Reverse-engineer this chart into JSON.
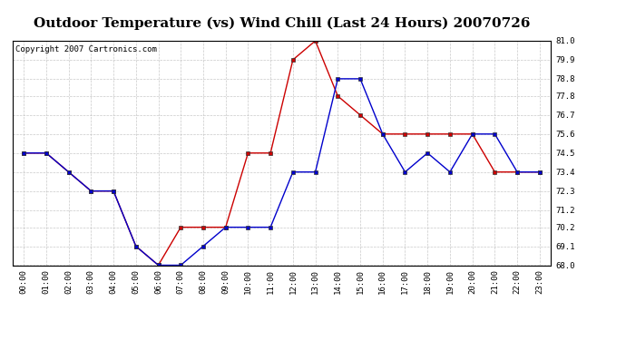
{
  "title": "Outdoor Temperature (vs) Wind Chill (Last 24 Hours) 20070726",
  "copyright": "Copyright 2007 Cartronics.com",
  "hours": [
    "00:00",
    "01:00",
    "02:00",
    "03:00",
    "04:00",
    "05:00",
    "06:00",
    "07:00",
    "08:00",
    "09:00",
    "10:00",
    "11:00",
    "12:00",
    "13:00",
    "14:00",
    "15:00",
    "16:00",
    "17:00",
    "18:00",
    "19:00",
    "20:00",
    "21:00",
    "22:00",
    "23:00"
  ],
  "outdoor_temp": [
    74.5,
    74.5,
    73.4,
    72.3,
    72.3,
    69.1,
    68.0,
    70.2,
    70.2,
    70.2,
    74.5,
    74.5,
    79.9,
    81.0,
    77.8,
    76.7,
    75.6,
    75.6,
    75.6,
    75.6,
    75.6,
    73.4,
    73.4,
    73.4
  ],
  "wind_chill": [
    74.5,
    74.5,
    73.4,
    72.3,
    72.3,
    69.1,
    68.0,
    68.0,
    69.1,
    70.2,
    70.2,
    70.2,
    73.4,
    73.4,
    78.8,
    78.8,
    75.6,
    73.4,
    74.5,
    73.4,
    75.6,
    75.6,
    73.4,
    73.4
  ],
  "temp_color": "#cc0000",
  "chill_color": "#0000cc",
  "marker": "s",
  "marker_size": 2.5,
  "ylim": [
    68.0,
    81.0
  ],
  "yticks": [
    68.0,
    69.1,
    70.2,
    71.2,
    72.3,
    73.4,
    74.5,
    75.6,
    76.7,
    77.8,
    78.8,
    79.9,
    81.0
  ],
  "bg_color": "#ffffff",
  "plot_bg_color": "#ffffff",
  "grid_color": "#bbbbbb",
  "title_fontsize": 11,
  "copyright_fontsize": 6.5,
  "tick_fontsize": 6.5
}
